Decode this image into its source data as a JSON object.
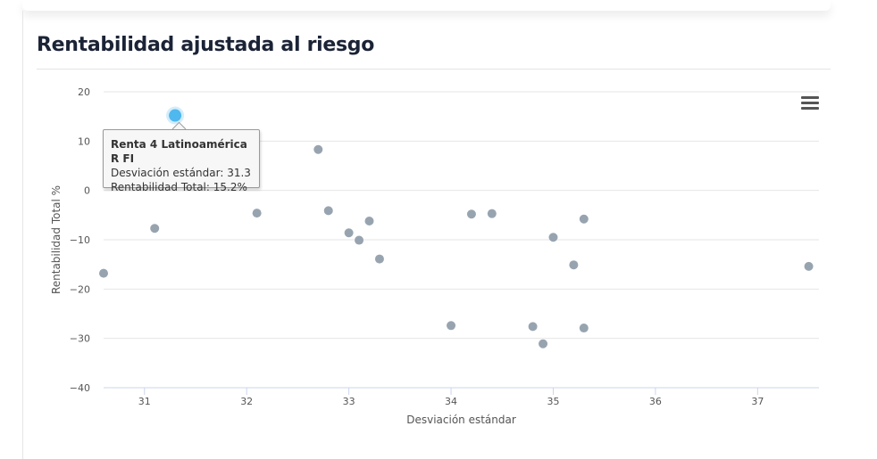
{
  "page": {
    "title": "Rentabilidad ajustada al riesgo"
  },
  "tooltip": {
    "title": "Renta 4 Latinoamérica R FI",
    "line1_label": "Desviación estándar: ",
    "line1_value": "31.3",
    "line2_label": "Rentabilidad Total: ",
    "line2_value": "15.2%"
  },
  "menu": {
    "icon": "hamburger-menu-icon"
  },
  "colors": {
    "point": "#97a4b0",
    "highlight": "#4fb8ee",
    "grid": "#e6e6e6",
    "axis": "#ccd6eb"
  },
  "chart_data": {
    "type": "scatter",
    "title": "",
    "xlabel": "Desviación estándar",
    "ylabel": "Rentabilidad Total %",
    "xlim": [
      30.6,
      37.6
    ],
    "ylim": [
      -40,
      20
    ],
    "xticks": [
      "31",
      "32",
      "33",
      "34",
      "35",
      "36",
      "37"
    ],
    "yticks": [
      "20",
      "10",
      "0",
      "−10",
      "−20",
      "−30",
      "−40"
    ],
    "grid": true,
    "highlighted": {
      "x": 31.3,
      "y": 15.2
    },
    "points": [
      {
        "x": 30.6,
        "y": -16.8
      },
      {
        "x": 31.0,
        "y": 3.5
      },
      {
        "x": 31.1,
        "y": -7.7
      },
      {
        "x": 32.1,
        "y": -4.6
      },
      {
        "x": 32.7,
        "y": 8.3
      },
      {
        "x": 32.8,
        "y": -4.1
      },
      {
        "x": 33.0,
        "y": -8.6
      },
      {
        "x": 33.1,
        "y": -10.1
      },
      {
        "x": 33.2,
        "y": -6.2
      },
      {
        "x": 33.3,
        "y": -13.9
      },
      {
        "x": 34.0,
        "y": -27.4
      },
      {
        "x": 34.2,
        "y": -4.8
      },
      {
        "x": 34.4,
        "y": -4.7
      },
      {
        "x": 34.8,
        "y": -27.6
      },
      {
        "x": 34.9,
        "y": -31.1
      },
      {
        "x": 35.0,
        "y": -9.5
      },
      {
        "x": 35.2,
        "y": -15.1
      },
      {
        "x": 35.3,
        "y": -5.8
      },
      {
        "x": 35.3,
        "y": -27.9
      },
      {
        "x": 37.5,
        "y": -15.4
      }
    ]
  }
}
